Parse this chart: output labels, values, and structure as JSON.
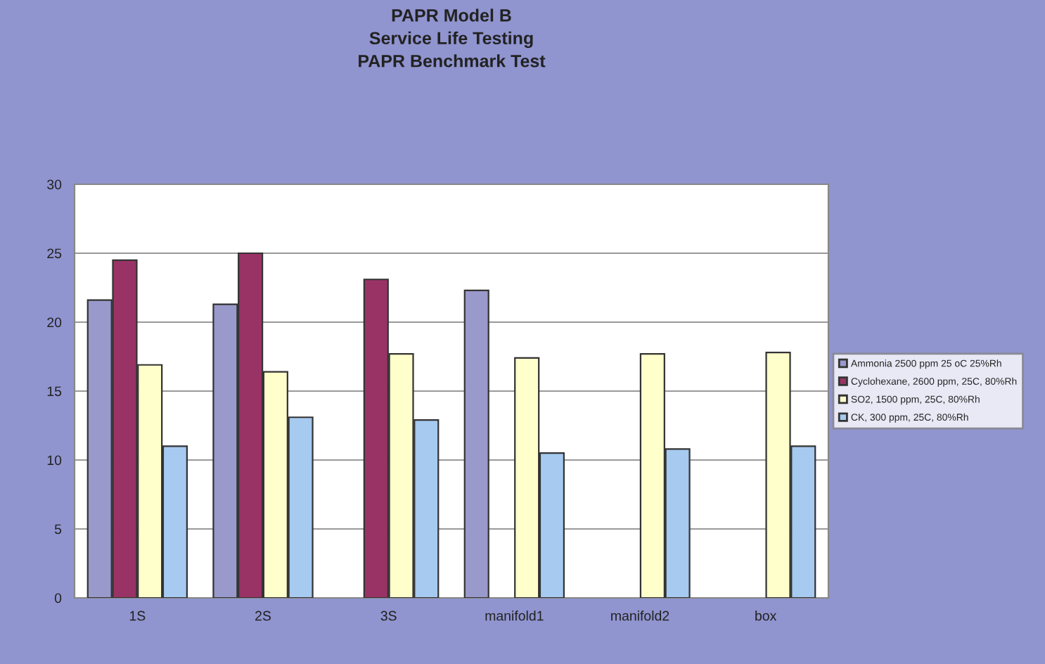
{
  "chart_data": {
    "type": "bar",
    "title": "PAPR Model B\nService Life Testing\nPAPR Benchmark Test",
    "categories": [
      "1S",
      "2S",
      "3S",
      "manifold1",
      "manifold2",
      "box"
    ],
    "series": [
      {
        "name": "Ammonia 2500 ppm 25 oC 25%Rh",
        "color": "#9999cc",
        "values": [
          21.6,
          21.3,
          null,
          22.3,
          null,
          null
        ]
      },
      {
        "name": "Cyclohexane, 2600 ppm, 25C, 80%Rh",
        "color": "#993366",
        "values": [
          24.5,
          25.0,
          23.1,
          null,
          null,
          null
        ]
      },
      {
        "name": "SO2, 1500 ppm, 25C, 80%Rh",
        "color": "#ffffcc",
        "values": [
          16.9,
          16.4,
          17.7,
          17.4,
          17.7,
          17.8
        ]
      },
      {
        "name": "CK, 300 ppm, 25C, 80%Rh",
        "color": "#a6caf0",
        "values": [
          11.0,
          13.1,
          12.9,
          10.5,
          10.8,
          11.0
        ]
      }
    ],
    "ylim": [
      0,
      30
    ],
    "yticks": [
      0,
      5,
      10,
      15,
      20,
      25,
      30
    ],
    "grid": "y",
    "legend": "right"
  }
}
